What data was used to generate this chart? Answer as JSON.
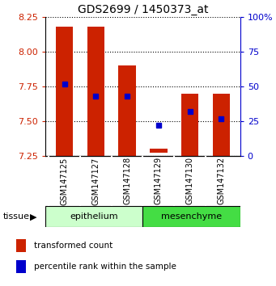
{
  "title": "GDS2699 / 1450373_at",
  "samples": [
    "GSM147125",
    "GSM147127",
    "GSM147128",
    "GSM147129",
    "GSM147130",
    "GSM147132"
  ],
  "bar_bottoms": [
    7.25,
    7.25,
    7.25,
    7.27,
    7.25,
    7.25
  ],
  "bar_tops": [
    8.18,
    8.18,
    7.9,
    7.3,
    7.7,
    7.7
  ],
  "percentile_values": [
    7.77,
    7.68,
    7.68,
    7.47,
    7.57,
    7.52
  ],
  "ylim": [
    7.25,
    8.25
  ],
  "yticks": [
    7.25,
    7.5,
    7.75,
    8.0,
    8.25
  ],
  "right_yticks": [
    0,
    25,
    50,
    75,
    100
  ],
  "right_ytick_labels": [
    "0",
    "25",
    "50",
    "75",
    "100%"
  ],
  "bar_color": "#cc2200",
  "percentile_color": "#0000cc",
  "epi_color_light": "#ccffcc",
  "epi_color_dark": "#44dd44",
  "bar_width": 0.55,
  "xlabel_color": "#cc2200",
  "right_axis_color": "#0000cc",
  "legend_items": [
    {
      "label": "transformed count",
      "color": "#cc2200"
    },
    {
      "label": "percentile rank within the sample",
      "color": "#0000cc"
    }
  ],
  "fig_width": 3.41,
  "fig_height": 3.54,
  "dpi": 100
}
